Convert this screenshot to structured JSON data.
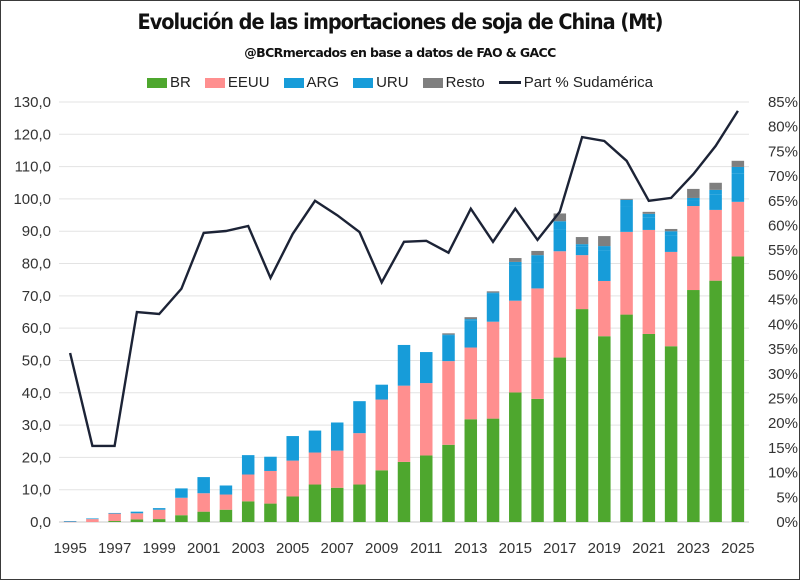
{
  "chart_data": {
    "type": "bar",
    "subtype": "stacked-bar-with-line",
    "title": "Evolución de las importaciones de soja de China (Mt)",
    "subtitle": "@BCRmercados  en base a datos de FAO & GACC",
    "xlabel": "",
    "ylabel": "",
    "y2label": "",
    "ylim": [
      0,
      130
    ],
    "y2lim": [
      0,
      85
    ],
    "yticks": [
      "0,0",
      "10,0",
      "20,0",
      "30,0",
      "40,0",
      "50,0",
      "60,0",
      "70,0",
      "80,0",
      "90,0",
      "100,0",
      "110,0",
      "120,0",
      "130,0"
    ],
    "y2ticks": [
      "0%",
      "5%",
      "10%",
      "15%",
      "20%",
      "25%",
      "30%",
      "35%",
      "40%",
      "45%",
      "50%",
      "55%",
      "60%",
      "65%",
      "70%",
      "75%",
      "80%",
      "85%"
    ],
    "grid": true,
    "legend_position": "top",
    "categories": [
      "1995",
      "1996",
      "1997",
      "1998",
      "1999",
      "2000",
      "2001",
      "2002",
      "2003",
      "2004",
      "2005",
      "2006",
      "2007",
      "2008",
      "2009",
      "2010",
      "2011",
      "2012",
      "2013",
      "2014",
      "2015",
      "2016",
      "2017",
      "2018",
      "2019",
      "2020",
      "2021",
      "2022",
      "2023",
      "2024",
      "2025"
    ],
    "xtick_labels": [
      "1995",
      "1997",
      "1999",
      "2001",
      "2003",
      "2005",
      "2007",
      "2009",
      "2011",
      "2013",
      "2015",
      "2017",
      "2019",
      "2021",
      "2023",
      "2025"
    ],
    "series": [
      {
        "name": "BR",
        "type": "bar",
        "color": "#4EA72E",
        "values": [
          0.0,
          0.0,
          0.3,
          0.8,
          0.9,
          2.1,
          3.2,
          3.8,
          6.4,
          5.7,
          7.9,
          11.6,
          10.6,
          11.6,
          16.0,
          18.6,
          20.6,
          23.9,
          31.8,
          32.0,
          40.1,
          38.1,
          50.9,
          65.9,
          57.5,
          64.2,
          58.2,
          54.4,
          71.8,
          74.7,
          82.2
        ]
      },
      {
        "name": "EEUU",
        "type": "bar",
        "color": "#FF8F8F",
        "values": [
          0.1,
          0.9,
          2.3,
          1.9,
          2.9,
          5.4,
          5.7,
          4.7,
          8.3,
          10.1,
          11.1,
          9.9,
          11.5,
          15.9,
          21.9,
          23.6,
          22.4,
          25.9,
          22.2,
          30.0,
          28.4,
          34.2,
          32.9,
          16.7,
          17.1,
          25.6,
          32.2,
          29.2,
          26.0,
          21.9,
          16.9
        ]
      },
      {
        "name": "ARG",
        "type": "bar",
        "color": "#179CD9",
        "values": [
          0.2,
          0.2,
          0.2,
          0.5,
          0.5,
          2.9,
          5.0,
          2.8,
          6.0,
          4.4,
          7.6,
          6.8,
          8.7,
          9.9,
          4.6,
          12.6,
          9.6,
          7.9,
          8.3,
          8.6,
          11.0,
          8.0,
          6.6,
          2.6,
          9.4,
          8.0,
          3.8,
          5.2,
          1.7,
          4.7,
          8.7
        ]
      },
      {
        "name": "URU",
        "type": "bar",
        "color": "#179CD9",
        "values": [
          0.0,
          0.0,
          0.0,
          0.0,
          0.0,
          0.0,
          0.0,
          0.0,
          0.0,
          0.0,
          0.0,
          0.0,
          0.0,
          0.0,
          0.0,
          0.0,
          0.0,
          0.3,
          0.5,
          0.4,
          1.0,
          2.3,
          2.7,
          0.8,
          1.4,
          1.9,
          1.2,
          1.2,
          0.8,
          1.5,
          2.1
        ]
      },
      {
        "name": "Resto",
        "type": "bar",
        "color": "#7F7F7F",
        "values": [
          0.0,
          0.0,
          0.0,
          0.0,
          0.0,
          0.0,
          0.0,
          0.0,
          0.0,
          0.0,
          0.0,
          0.0,
          0.0,
          0.0,
          0.0,
          0.0,
          0.0,
          0.4,
          0.6,
          0.4,
          1.2,
          1.3,
          2.4,
          2.2,
          3.1,
          0.3,
          0.6,
          0.7,
          2.8,
          2.2,
          1.9
        ]
      },
      {
        "name": "Part % Sudamérica",
        "type": "line",
        "axis": "right",
        "color": "#1C2336",
        "values": [
          34.2,
          15.4,
          15.4,
          42.5,
          42.1,
          47.2,
          58.5,
          58.9,
          59.9,
          49.4,
          58.3,
          65.0,
          62.1,
          58.7,
          48.5,
          56.7,
          56.9,
          54.5,
          63.4,
          56.7,
          63.4,
          57.1,
          62.8,
          77.9,
          77.1,
          73.1,
          65.0,
          65.6,
          70.4,
          76.1,
          83.2
        ]
      }
    ]
  }
}
